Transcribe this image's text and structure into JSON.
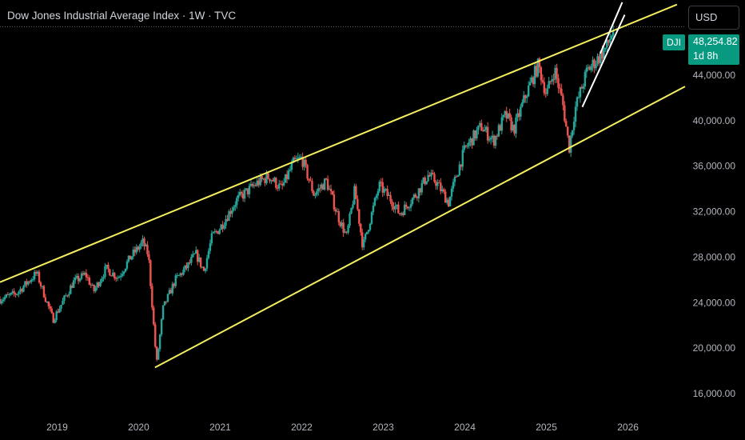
{
  "header": {
    "title": "Dow Jones Industrial Average Index · 1W · TVC",
    "currency_button": "USD"
  },
  "price_label": {
    "symbol": "DJI",
    "value": "48,254.82",
    "countdown": "1d 8h"
  },
  "colors": {
    "background": "#000000",
    "up": "#26a69a",
    "down": "#ef5350",
    "trendline": "#f5ee5f",
    "channel": "#ffffff",
    "price_tag": "#089981"
  },
  "chart_data": {
    "type": "candlestick",
    "symbol": "DJI",
    "timeframe": "1W",
    "x_ticks": [
      "2019",
      "2020",
      "2021",
      "2022",
      "2023",
      "2024",
      "2025",
      "2026"
    ],
    "y_ticks": [
      16000,
      20000,
      24000,
      28000,
      32000,
      36000,
      40000,
      44000
    ],
    "y_tick_labels": [
      "16,000.00",
      "20,000.00",
      "24,000.00",
      "28,000.00",
      "32,000.00",
      "36,000.00",
      "40,000.00",
      "44,000.00"
    ],
    "xlim": [
      "2018-04",
      "2026-09"
    ],
    "ylim": [
      14600,
      50600
    ],
    "last_price": 48254.82,
    "series": [
      {
        "name": "DJI",
        "points": [
          [
            "2018.3",
            24300
          ],
          [
            "2018.5",
            24800
          ],
          [
            "2018.75",
            26600
          ],
          [
            "2018.95",
            22500
          ],
          [
            "2019.2",
            25800
          ],
          [
            "2019.35",
            26500
          ],
          [
            "2019.45",
            25000
          ],
          [
            "2019.6",
            27000
          ],
          [
            "2019.75",
            26200
          ],
          [
            "2019.9",
            28000
          ],
          [
            "2020.05",
            29300
          ],
          [
            "2020.12",
            28200
          ],
          [
            "2020.22",
            18600
          ],
          [
            "2020.3",
            23500
          ],
          [
            "2020.45",
            26000
          ],
          [
            "2020.6",
            27200
          ],
          [
            "2020.7",
            28300
          ],
          [
            "2020.8",
            26800
          ],
          [
            "2020.9",
            29800
          ],
          [
            "2021.0",
            30600
          ],
          [
            "2021.2",
            33000
          ],
          [
            "2021.45",
            34500
          ],
          [
            "2021.6",
            35100
          ],
          [
            "2021.75",
            34000
          ],
          [
            "2021.9",
            36300
          ],
          [
            "2022.0",
            36700
          ],
          [
            "2022.15",
            33500
          ],
          [
            "2022.3",
            34700
          ],
          [
            "2022.45",
            31500
          ],
          [
            "2022.55",
            29800
          ],
          [
            "2022.65",
            33900
          ],
          [
            "2022.75",
            28900
          ],
          [
            "2022.95",
            34300
          ],
          [
            "2023.1",
            33000
          ],
          [
            "2023.2",
            31800
          ],
          [
            "2023.4",
            33500
          ],
          [
            "2023.55",
            35200
          ],
          [
            "2023.65",
            34600
          ],
          [
            "2023.8",
            32800
          ],
          [
            "2023.9",
            35300
          ],
          [
            "2024.0",
            37500
          ],
          [
            "2024.2",
            39500
          ],
          [
            "2024.35",
            38200
          ],
          [
            "2024.5",
            40500
          ],
          [
            "2024.6",
            39200
          ],
          [
            "2024.75",
            42300
          ],
          [
            "2024.9",
            44900
          ],
          [
            "2025.0",
            42300
          ],
          [
            "2025.1",
            44500
          ],
          [
            "2025.2",
            41500
          ],
          [
            "2025.28",
            37600
          ],
          [
            "2025.35",
            41000
          ],
          [
            "2025.5",
            44400
          ],
          [
            "2025.65",
            45600
          ],
          [
            "2025.75",
            46600
          ],
          [
            "2025.83",
            48254.82
          ]
        ]
      }
    ],
    "drawings": [
      {
        "name": "upper-trendline",
        "points": [
          [
            "2018.3",
            25800
          ],
          [
            "2026.6",
            50200
          ]
        ]
      },
      {
        "name": "lower-trendline",
        "points": [
          [
            "2020.2",
            18300
          ],
          [
            "2026.7",
            43000
          ]
        ]
      },
      {
        "name": "channel-upper",
        "points": [
          [
            "2025.66",
            45900
          ],
          [
            "2025.93",
            50400
          ]
        ]
      },
      {
        "name": "channel-lower",
        "points": [
          [
            "2025.44",
            41200
          ],
          [
            "2025.96",
            49300
          ]
        ]
      }
    ]
  }
}
